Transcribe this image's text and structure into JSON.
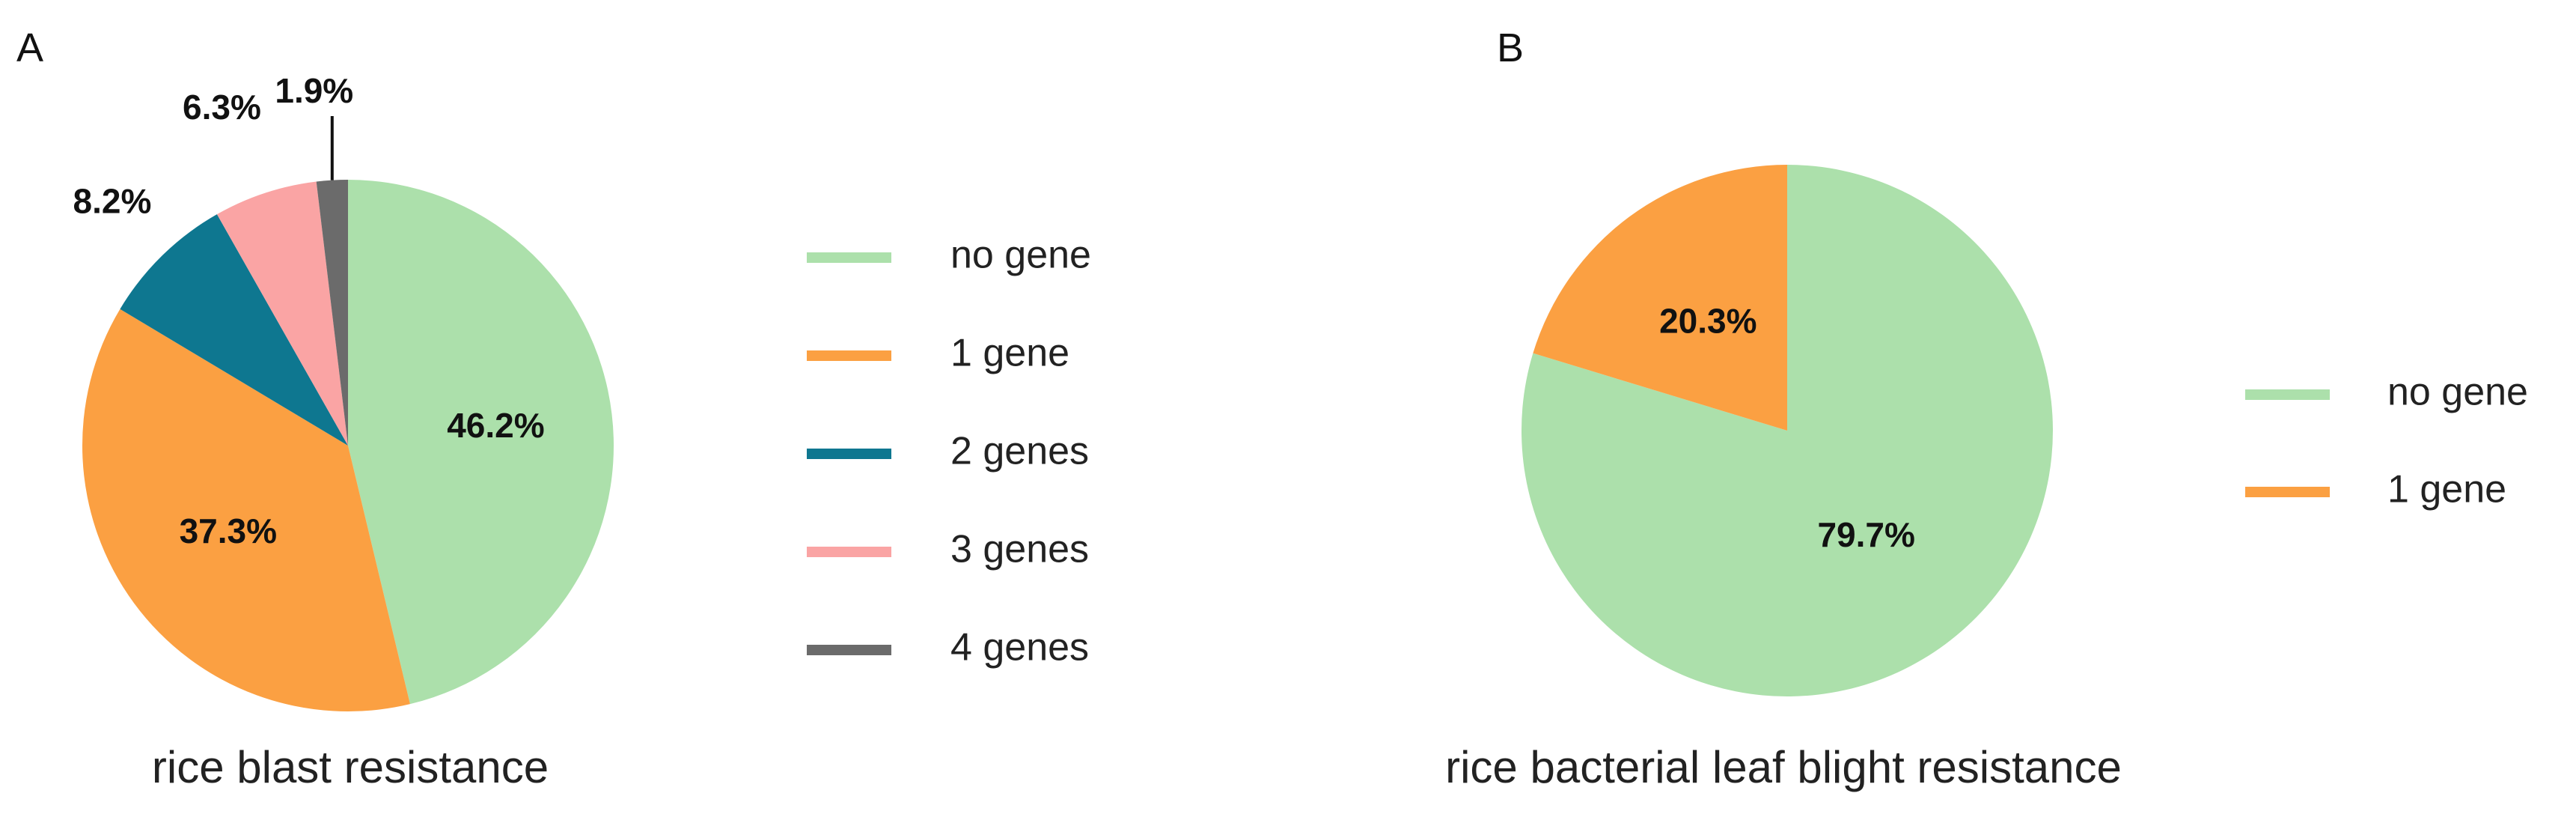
{
  "chart_data": [
    {
      "type": "pie",
      "panel": "A",
      "caption": "rice blast resistance",
      "categories": [
        "no gene",
        "1 gene",
        "2 genes",
        "3 genes",
        "4 genes"
      ],
      "values": [
        46.2,
        37.3,
        8.2,
        6.3,
        1.9
      ],
      "labels": [
        "46.2%",
        "37.3%",
        "8.2%",
        "6.3%",
        "1.9%"
      ],
      "colors": [
        "#ace0ab",
        "#fba042",
        "#0e7790",
        "#faa4a4",
        "#6b6b6b"
      ],
      "legend_position": "right"
    },
    {
      "type": "pie",
      "panel": "B",
      "caption": "rice bacterial leaf blight resistance",
      "categories": [
        "no gene",
        "1 gene"
      ],
      "values": [
        79.7,
        20.3
      ],
      "labels": [
        "79.7%",
        "20.3%"
      ],
      "colors": [
        "#ace0ab",
        "#fba042"
      ],
      "legend_position": "right"
    }
  ]
}
